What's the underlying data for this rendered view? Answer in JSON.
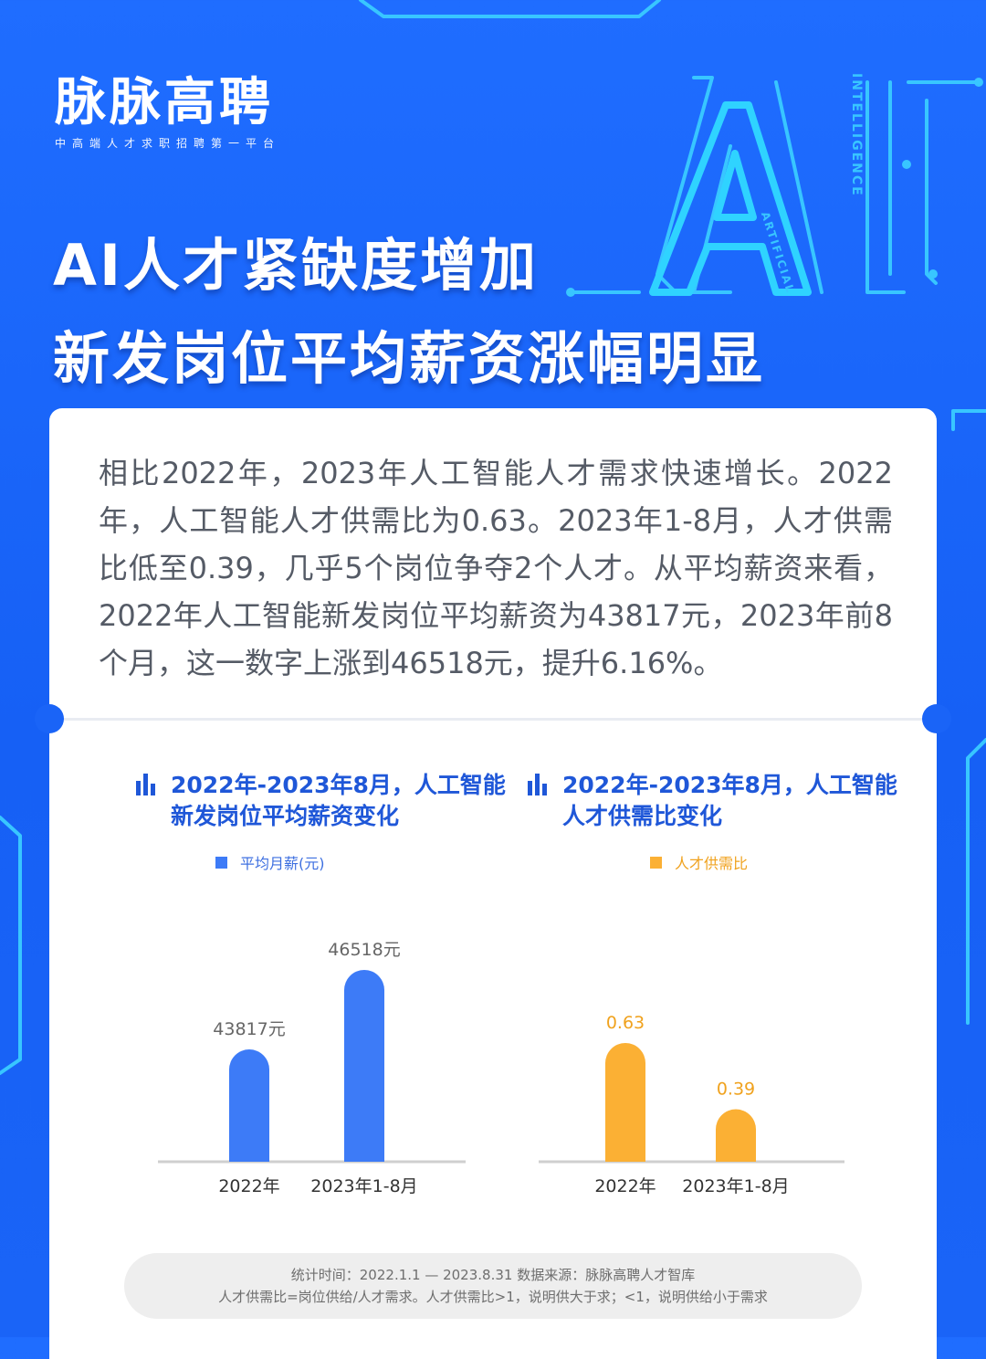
{
  "brand": {
    "name": "脉脉高聘",
    "tagline": "中高端人才求职招聘第一平台"
  },
  "headline": {
    "line1": "AI人才紧缺度增加",
    "line2": "新发岗位平均薪资涨幅明显"
  },
  "decor": {
    "ai_text": "AI",
    "intelligence": "INTELLIGENCE",
    "artificial": "ARTIFICIAL"
  },
  "summary": "相比2022年，2023年人工智能人才需求快速增长。2022年，人工智能人才供需比为0.63。2023年1-8月，人才供需比低至0.39，几乎5个岗位争夺2个人才。从平均薪资来看，2022年人工智能新发岗位平均薪资为43817元，2023年前8个月，这一数字上涨到46518元，提升6.16%。",
  "chart_data": [
    {
      "type": "bar",
      "title_line1": "2022年-2023年8月，人工智能",
      "title_line2": "新发岗位平均薪资变化",
      "categories": [
        "2022年",
        "2023年1-8月"
      ],
      "series": [
        {
          "name": "平均月薪(元)",
          "values": [
            43817,
            46518
          ]
        }
      ],
      "data_labels": [
        "43817元",
        "46518元"
      ],
      "color": "#3d7bf7",
      "legend_position": "top"
    },
    {
      "type": "bar",
      "title_line1": "2022年-2023年8月，人工智能",
      "title_line2": "人才供需比变化",
      "categories": [
        "2022年",
        "2023年1-8月"
      ],
      "series": [
        {
          "name": "人才供需比",
          "values": [
            0.63,
            0.39
          ]
        }
      ],
      "data_labels": [
        "0.63",
        "0.39"
      ],
      "color": "#fbb034",
      "legend_position": "top"
    }
  ],
  "footnote": {
    "line1": "统计时间：2022.1.1 — 2023.8.31  数据来源：脉脉高聘人才智库",
    "line2": "人才供需比=岗位供给/人才需求。人才供需比>1，说明供大于求；<1，说明供给小于需求"
  }
}
